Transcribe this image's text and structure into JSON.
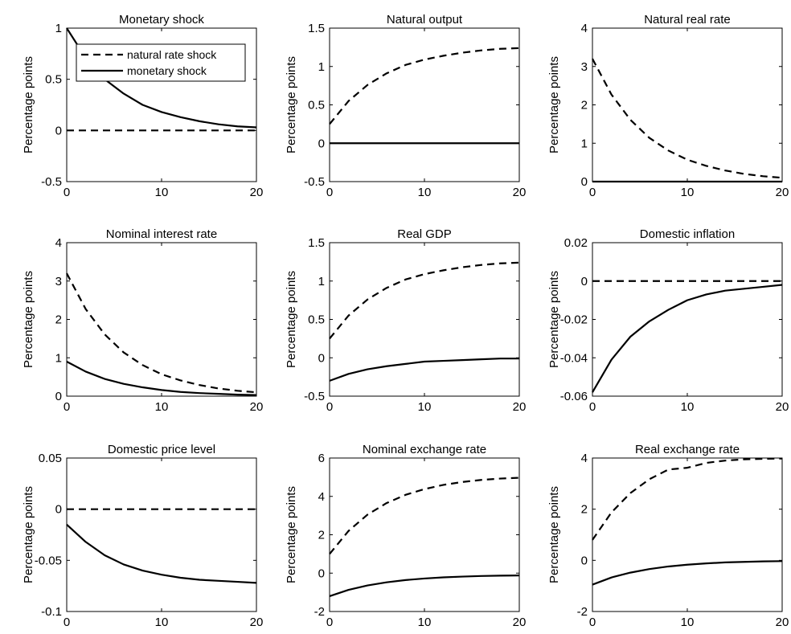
{
  "figure": {
    "ylabel": "Percentage points",
    "line_color": "#000000",
    "background": "#ffffff"
  },
  "legend": {
    "position": "top-right of first panel",
    "entries": [
      {
        "label": "natural rate shock",
        "style": "dashed"
      },
      {
        "label": "monetary shock",
        "style": "solid"
      }
    ]
  },
  "chart_data": [
    {
      "type": "line",
      "title": "Monetary shock",
      "ylabel": "Percentage points",
      "xlim": [
        0,
        20
      ],
      "ylim": [
        -0.5,
        1
      ],
      "xticks": [
        "0",
        "10",
        "20"
      ],
      "yticks": [
        "-0.5",
        "0",
        "0.5",
        "1"
      ],
      "x": [
        0,
        2,
        4,
        6,
        8,
        10,
        12,
        14,
        16,
        18,
        20
      ],
      "series": [
        {
          "name": "natural rate shock",
          "style": "dashed",
          "values": [
            0,
            0,
            0,
            0,
            0,
            0,
            0,
            0,
            0,
            0,
            0
          ]
        },
        {
          "name": "monetary shock",
          "style": "solid",
          "values": [
            1.0,
            0.71,
            0.5,
            0.36,
            0.25,
            0.18,
            0.13,
            0.09,
            0.06,
            0.04,
            0.03
          ]
        }
      ]
    },
    {
      "type": "line",
      "title": "Natural output",
      "ylabel": "Percentage points",
      "xlim": [
        0,
        20
      ],
      "ylim": [
        -0.5,
        1.5
      ],
      "xticks": [
        "0",
        "10",
        "20"
      ],
      "yticks": [
        "-0.5",
        "0",
        "0.5",
        "1",
        "1.5"
      ],
      "x": [
        0,
        2,
        4,
        6,
        8,
        10,
        12,
        14,
        16,
        18,
        20
      ],
      "series": [
        {
          "name": "natural rate shock",
          "style": "dashed",
          "values": [
            0.25,
            0.55,
            0.76,
            0.91,
            1.02,
            1.09,
            1.14,
            1.18,
            1.21,
            1.23,
            1.24
          ]
        },
        {
          "name": "monetary shock",
          "style": "solid",
          "values": [
            0,
            0,
            0,
            0,
            0,
            0,
            0,
            0,
            0,
            0,
            0
          ]
        }
      ]
    },
    {
      "type": "line",
      "title": "Natural real rate",
      "ylabel": "Percentage points",
      "xlim": [
        0,
        20
      ],
      "ylim": [
        0,
        4
      ],
      "xticks": [
        "0",
        "10",
        "20"
      ],
      "yticks": [
        "0",
        "1",
        "2",
        "3",
        "4"
      ],
      "x": [
        0,
        2,
        4,
        6,
        8,
        10,
        12,
        14,
        16,
        18,
        20
      ],
      "series": [
        {
          "name": "natural rate shock",
          "style": "dashed",
          "values": [
            3.2,
            2.27,
            1.61,
            1.14,
            0.81,
            0.57,
            0.41,
            0.29,
            0.2,
            0.14,
            0.1
          ]
        },
        {
          "name": "monetary shock",
          "style": "solid",
          "values": [
            0,
            0,
            0,
            0,
            0,
            0,
            0,
            0,
            0,
            0,
            0
          ]
        }
      ]
    },
    {
      "type": "line",
      "title": "Nominal interest rate",
      "ylabel": "Percentage points",
      "xlim": [
        0,
        20
      ],
      "ylim": [
        0,
        4
      ],
      "xticks": [
        "0",
        "10",
        "20"
      ],
      "yticks": [
        "0",
        "1",
        "2",
        "3",
        "4"
      ],
      "x": [
        0,
        2,
        4,
        6,
        8,
        10,
        12,
        14,
        16,
        18,
        20
      ],
      "series": [
        {
          "name": "natural rate shock",
          "style": "dashed",
          "values": [
            3.2,
            2.27,
            1.61,
            1.14,
            0.81,
            0.57,
            0.41,
            0.29,
            0.2,
            0.14,
            0.1
          ]
        },
        {
          "name": "monetary shock",
          "style": "solid",
          "values": [
            0.9,
            0.64,
            0.45,
            0.32,
            0.23,
            0.16,
            0.11,
            0.08,
            0.06,
            0.04,
            0.03
          ]
        }
      ]
    },
    {
      "type": "line",
      "title": "Real GDP",
      "ylabel": "Percentage points",
      "xlim": [
        0,
        20
      ],
      "ylim": [
        -0.5,
        1.5
      ],
      "xticks": [
        "0",
        "10",
        "20"
      ],
      "yticks": [
        "-0.5",
        "0",
        "0.5",
        "1",
        "1.5"
      ],
      "x": [
        0,
        2,
        4,
        6,
        8,
        10,
        12,
        14,
        16,
        18,
        20
      ],
      "series": [
        {
          "name": "natural rate shock",
          "style": "dashed",
          "values": [
            0.25,
            0.55,
            0.76,
            0.91,
            1.02,
            1.09,
            1.14,
            1.18,
            1.21,
            1.23,
            1.24
          ]
        },
        {
          "name": "monetary shock",
          "style": "solid",
          "values": [
            -0.3,
            -0.21,
            -0.15,
            -0.11,
            -0.08,
            -0.05,
            -0.04,
            -0.03,
            -0.02,
            -0.01,
            -0.01
          ]
        }
      ]
    },
    {
      "type": "line",
      "title": "Domestic inflation",
      "ylabel": "Percentage points",
      "xlim": [
        0,
        20
      ],
      "ylim": [
        -0.06,
        0.02
      ],
      "xticks": [
        "0",
        "10",
        "20"
      ],
      "yticks": [
        "-0.06",
        "-0.04",
        "-0.02",
        "0",
        "0.02"
      ],
      "x": [
        0,
        2,
        4,
        6,
        8,
        10,
        12,
        14,
        16,
        18,
        20
      ],
      "series": [
        {
          "name": "natural rate shock",
          "style": "dashed",
          "values": [
            0,
            0,
            0,
            0,
            0,
            0,
            0,
            0,
            0,
            0,
            0
          ]
        },
        {
          "name": "monetary shock",
          "style": "solid",
          "values": [
            -0.058,
            -0.041,
            -0.029,
            -0.021,
            -0.015,
            -0.01,
            -0.007,
            -0.005,
            -0.004,
            -0.003,
            -0.002
          ]
        }
      ]
    },
    {
      "type": "line",
      "title": "Domestic price level",
      "ylabel": "Percentage points",
      "xlim": [
        0,
        20
      ],
      "ylim": [
        -0.1,
        0.05
      ],
      "xticks": [
        "0",
        "10",
        "20"
      ],
      "yticks": [
        "-0.1",
        "-0.05",
        "0",
        "0.05"
      ],
      "x": [
        0,
        2,
        4,
        6,
        8,
        10,
        12,
        14,
        16,
        18,
        20
      ],
      "series": [
        {
          "name": "natural rate shock",
          "style": "dashed",
          "values": [
            0,
            0,
            0,
            0,
            0,
            0,
            0,
            0,
            0,
            0,
            0
          ]
        },
        {
          "name": "monetary shock",
          "style": "solid",
          "values": [
            -0.015,
            -0.032,
            -0.045,
            -0.054,
            -0.06,
            -0.064,
            -0.067,
            -0.069,
            -0.07,
            -0.071,
            -0.072
          ]
        }
      ]
    },
    {
      "type": "line",
      "title": "Nominal exchange rate",
      "ylabel": "Percentage points",
      "xlim": [
        0,
        20
      ],
      "ylim": [
        -2,
        6
      ],
      "xticks": [
        "0",
        "10",
        "20"
      ],
      "yticks": [
        "-2",
        "0",
        "2",
        "4",
        "6"
      ],
      "x": [
        0,
        2,
        4,
        6,
        8,
        10,
        12,
        14,
        16,
        18,
        20
      ],
      "series": [
        {
          "name": "natural rate shock",
          "style": "dashed",
          "values": [
            1.0,
            2.2,
            3.05,
            3.65,
            4.08,
            4.38,
            4.6,
            4.75,
            4.86,
            4.93,
            4.97
          ]
        },
        {
          "name": "monetary shock",
          "style": "solid",
          "values": [
            -1.2,
            -0.87,
            -0.64,
            -0.48,
            -0.36,
            -0.28,
            -0.22,
            -0.18,
            -0.15,
            -0.13,
            -0.12
          ]
        }
      ]
    },
    {
      "type": "line",
      "title": "Real exchange rate",
      "ylabel": "Percentage points",
      "xlim": [
        0,
        20
      ],
      "ylim": [
        -2,
        4
      ],
      "xticks": [
        "0",
        "10",
        "20"
      ],
      "yticks": [
        "-2",
        "0",
        "2",
        "4"
      ],
      "x": [
        0,
        2,
        4,
        6,
        8,
        10,
        12,
        14,
        16,
        18,
        20
      ],
      "series": [
        {
          "name": "natural rate shock",
          "style": "dashed",
          "values": [
            0.8,
            1.87,
            2.63,
            3.17,
            3.55,
            3.62,
            3.81,
            3.9,
            3.95,
            3.97,
            3.98
          ]
        },
        {
          "name": "monetary shock",
          "style": "solid",
          "values": [
            -0.95,
            -0.67,
            -0.48,
            -0.34,
            -0.24,
            -0.17,
            -0.12,
            -0.08,
            -0.06,
            -0.04,
            -0.03
          ]
        }
      ]
    }
  ]
}
